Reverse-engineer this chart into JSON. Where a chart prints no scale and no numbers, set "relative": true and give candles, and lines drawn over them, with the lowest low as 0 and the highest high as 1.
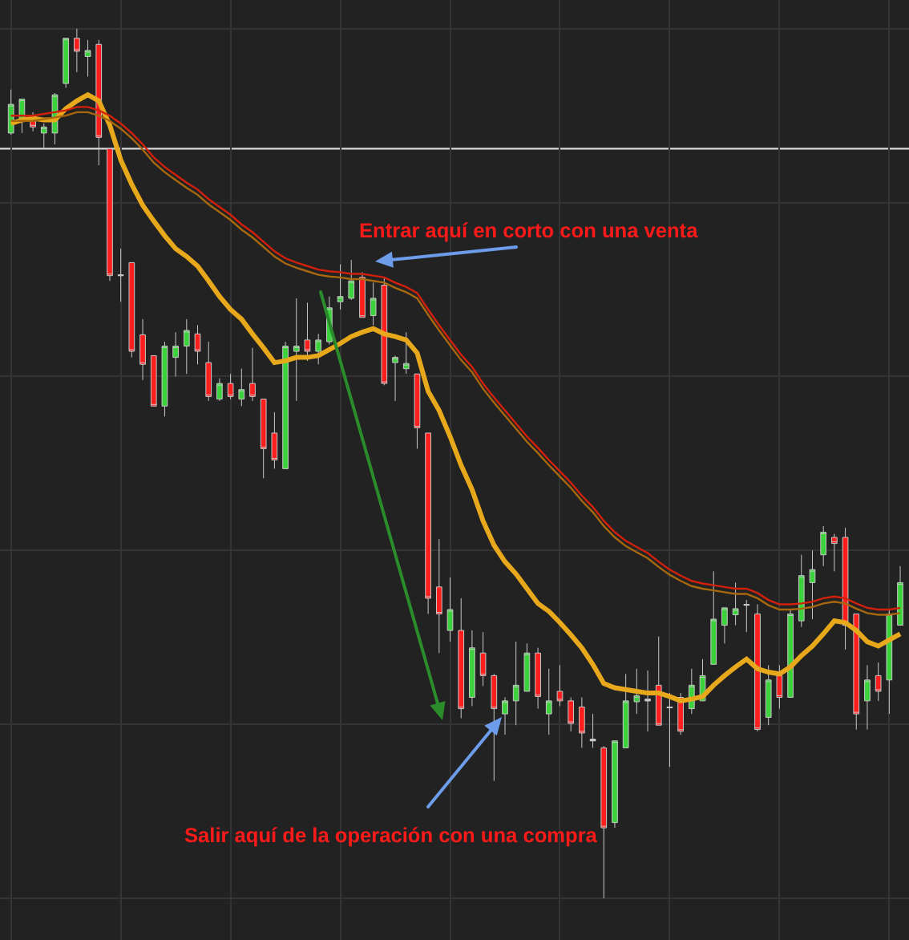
{
  "chart_data": {
    "type": "candlestick",
    "relative": true,
    "tick_labels": false,
    "grid": true,
    "categories": [
      null,
      null,
      null,
      null,
      null,
      null,
      null,
      null,
      null,
      null,
      null,
      null,
      null,
      null,
      null,
      null,
      null,
      null,
      null,
      null,
      null,
      null,
      null,
      null,
      null,
      null,
      null,
      null,
      null,
      null,
      null,
      null,
      null,
      null,
      null,
      null,
      null,
      null,
      null,
      null,
      null,
      null,
      null,
      null,
      null,
      null,
      null,
      null,
      null,
      null,
      null,
      null,
      null,
      null,
      null,
      null,
      null,
      null,
      null,
      null,
      null,
      null,
      null,
      null,
      null,
      null,
      null,
      null,
      null,
      null,
      null,
      null,
      null,
      null,
      null,
      null,
      null,
      null,
      null,
      null,
      null,
      null
    ],
    "ohlc": [
      [
        0.88,
        0.93,
        0.878,
        0.913
      ],
      [
        0.897,
        0.919,
        0.88,
        0.919
      ],
      [
        0.9,
        0.904,
        0.882,
        0.887
      ],
      [
        0.88,
        0.891,
        0.862,
        0.887
      ],
      [
        0.88,
        0.926,
        0.867,
        0.924
      ],
      [
        0.937,
        0.989,
        0.932,
        0.989
      ],
      [
        0.989,
        1,
        0.95,
        0.974
      ],
      [
        0.968,
        0.987,
        0.945,
        0.975
      ],
      [
        0.982,
        0.987,
        0.843,
        0.875
      ],
      [
        0.862,
        0.862,
        0.71,
        0.716
      ],
      [
        0.717,
        0.747,
        0.686,
        0.716
      ],
      [
        0.731,
        0.731,
        0.622,
        0.629
      ],
      [
        0.648,
        0.666,
        0.596,
        0.614
      ],
      [
        0.624,
        0.624,
        0.566,
        0.566
      ],
      [
        0.566,
        0.64,
        0.554,
        0.635
      ],
      [
        0.622,
        0.651,
        0.6,
        0.635
      ],
      [
        0.635,
        0.666,
        0.603,
        0.653
      ],
      [
        0.649,
        0.659,
        0.614,
        0.629
      ],
      [
        0.616,
        0.64,
        0.572,
        0.577
      ],
      [
        0.574,
        0.598,
        0.572,
        0.592
      ],
      [
        0.592,
        0.603,
        0.574,
        0.577
      ],
      [
        0.574,
        0.609,
        0.566,
        0.585
      ],
      [
        0.592,
        0.633,
        0.572,
        0.577
      ],
      [
        0.574,
        0.574,
        0.483,
        0.517
      ],
      [
        0.535,
        0.559,
        0.494,
        0.504
      ],
      [
        0.494,
        0.64,
        0.494,
        0.635
      ],
      [
        0.629,
        0.69,
        0.572,
        0.635
      ],
      [
        0.642,
        0.685,
        0.618,
        0.629
      ],
      [
        0.629,
        0.649,
        0.614,
        0.642
      ],
      [
        0.64,
        0.692,
        0.637,
        0.679
      ],
      [
        0.686,
        0.729,
        0.677,
        0.692
      ],
      [
        0.69,
        0.734,
        0.688,
        0.71
      ],
      [
        0.714,
        0.72,
        0.668,
        0.668
      ],
      [
        0.67,
        0.708,
        0.659,
        0.69
      ],
      [
        0.705,
        0.714,
        0.59,
        0.592
      ],
      [
        0.616,
        0.624,
        0.572,
        0.622
      ],
      [
        0.609,
        0.651,
        0.603,
        0.615
      ],
      [
        0.603,
        0.603,
        0.517,
        0.541
      ],
      [
        0.535,
        0.535,
        0.327,
        0.345
      ],
      [
        0.358,
        0.413,
        0.282,
        0.327
      ],
      [
        0.308,
        0.369,
        0.295,
        0.332
      ],
      [
        0.308,
        0.345,
        0.207,
        0.218
      ],
      [
        0.231,
        0.308,
        0.221,
        0.288
      ],
      [
        0.282,
        0.306,
        0.244,
        0.256
      ],
      [
        0.256,
        0.258,
        0.135,
        0.218
      ],
      [
        0.212,
        0.231,
        0.188,
        0.227
      ],
      [
        0.227,
        0.295,
        0.199,
        0.245
      ],
      [
        0.238,
        0.293,
        0.238,
        0.282
      ],
      [
        0.282,
        0.288,
        0.218,
        0.232
      ],
      [
        0.212,
        0.264,
        0.188,
        0.227
      ],
      [
        0.238,
        0.268,
        0.221,
        0.227
      ],
      [
        0.227,
        0.231,
        0.192,
        0.201
      ],
      [
        0.22,
        0.231,
        0.173,
        0.19
      ],
      [
        0.183,
        0.212,
        0.173,
        0.181
      ],
      [
        0.173,
        0.175,
        0,
        0.081
      ],
      [
        0.087,
        0.181,
        0.081,
        0.181
      ],
      [
        0.173,
        0.258,
        0.173,
        0.227
      ],
      [
        0.226,
        0.264,
        0.212,
        0.233
      ],
      [
        0.229,
        0.262,
        0.192,
        0.227
      ],
      [
        0.245,
        0.301,
        0.199,
        0.199
      ],
      [
        0.22,
        0.236,
        0.151,
        0.219
      ],
      [
        0.231,
        0.236,
        0.188,
        0.192
      ],
      [
        0.218,
        0.264,
        0.212,
        0.245
      ],
      [
        0.227,
        0.275,
        0.227,
        0.256
      ],
      [
        0.269,
        0.376,
        0.269,
        0.321
      ],
      [
        0.314,
        0.334,
        0.293,
        0.334
      ],
      [
        0.326,
        0.363,
        0.314,
        0.333
      ],
      [
        0.338,
        0.343,
        0.306,
        0.337
      ],
      [
        0.327,
        0.338,
        0.192,
        0.194
      ],
      [
        0.208,
        0.268,
        0.199,
        0.251
      ],
      [
        0.256,
        0.268,
        0.218,
        0.231
      ],
      [
        0.231,
        0.332,
        0.231,
        0.327
      ],
      [
        0.319,
        0.395,
        0.312,
        0.371
      ],
      [
        0.363,
        0.4,
        0.321,
        0.378
      ],
      [
        0.395,
        0.428,
        0.382,
        0.421
      ],
      [
        0.415,
        0.419,
        0.376,
        0.408
      ],
      [
        0.415,
        0.426,
        0.286,
        0.314
      ],
      [
        0.327,
        0.327,
        0.194,
        0.212
      ],
      [
        0.227,
        0.268,
        0.194,
        0.251
      ],
      [
        0.256,
        0.271,
        0.227,
        0.238
      ],
      [
        0.251,
        0.332,
        0.212,
        0.327
      ],
      [
        0.314,
        0.382,
        0.314,
        0.363
      ]
    ],
    "colors": [
      "#3cd23c",
      "#3cd23c",
      "#ff1e1e",
      "#3cd23c",
      "#3cd23c",
      "#3cd23c",
      "#ff1e1e",
      "#3cd23c",
      "#ff1e1e",
      "#ff1e1e",
      "#cccccc",
      "#ff1e1e",
      "#ff1e1e",
      "#ff1e1e",
      "#3cd23c",
      "#3cd23c",
      "#3cd23c",
      "#ff1e1e",
      "#ff1e1e",
      "#3cd23c",
      "#ff1e1e",
      "#3cd23c",
      "#ff1e1e",
      "#ff1e1e",
      "#ff1e1e",
      "#3cd23c",
      "#3cd23c",
      "#ff1e1e",
      "#3cd23c",
      "#3cd23c",
      "#3cd23c",
      "#3cd23c",
      "#ff1e1e",
      "#3cd23c",
      "#ff1e1e",
      "#3cd23c",
      "#3cd23c",
      "#ff1e1e",
      "#ff1e1e",
      "#ff1e1e",
      "#3cd23c",
      "#ff1e1e",
      "#3cd23c",
      "#ff1e1e",
      "#ff1e1e",
      "#3cd23c",
      "#3cd23c",
      "#3cd23c",
      "#ff1e1e",
      "#3cd23c",
      "#ff1e1e",
      "#ff1e1e",
      "#ff1e1e",
      "#cccccc",
      "#ff1e1e",
      "#3cd23c",
      "#3cd23c",
      "#3cd23c",
      "#cccccc",
      "#ff1e1e",
      "#cccccc",
      "#ff1e1e",
      "#3cd23c",
      "#3cd23c",
      "#3cd23c",
      "#3cd23c",
      "#3cd23c",
      "#cccccc",
      "#ff1e1e",
      "#3cd23c",
      "#ff1e1e",
      "#3cd23c",
      "#3cd23c",
      "#3cd23c",
      "#3cd23c",
      "#ff1e1e",
      "#ff1e1e",
      "#ff1e1e",
      "#3cd23c",
      "#ff1e1e",
      "#3cd23c",
      "#3cd23c"
    ],
    "series": [
      {
        "type": "line",
        "color": "#e8a81c",
        "values": [
          0.891,
          0.895,
          0.897,
          0.895,
          0.895,
          0.908,
          0.917,
          0.924,
          0.917,
          0.889,
          0.849,
          0.821,
          0.797,
          0.779,
          0.762,
          0.747,
          0.738,
          0.727,
          0.71,
          0.692,
          0.677,
          0.666,
          0.649,
          0.633,
          0.616,
          0.618,
          0.622,
          0.622,
          0.624,
          0.631,
          0.638,
          0.646,
          0.651,
          0.655,
          0.649,
          0.646,
          0.642,
          0.627,
          0.583,
          0.561,
          0.531,
          0.498,
          0.47,
          0.434,
          0.406,
          0.387,
          0.373,
          0.356,
          0.339,
          0.33,
          0.317,
          0.303,
          0.288,
          0.269,
          0.247,
          0.242,
          0.24,
          0.238,
          0.236,
          0.236,
          0.232,
          0.227,
          0.229,
          0.232,
          0.245,
          0.256,
          0.266,
          0.275,
          0.264,
          0.26,
          0.258,
          0.266,
          0.279,
          0.29,
          0.304,
          0.319,
          0.317,
          0.308,
          0.295,
          0.29,
          0.297,
          0.304
        ]
      },
      {
        "type": "line",
        "color": "#d2200c",
        "values": [
          0.9,
          0.9,
          0.9,
          0.902,
          0.904,
          0.906,
          0.91,
          0.91,
          0.906,
          0.9,
          0.891,
          0.88,
          0.867,
          0.852,
          0.841,
          0.832,
          0.823,
          0.815,
          0.804,
          0.795,
          0.786,
          0.775,
          0.766,
          0.755,
          0.744,
          0.736,
          0.731,
          0.727,
          0.723,
          0.721,
          0.72,
          0.718,
          0.718,
          0.716,
          0.714,
          0.708,
          0.703,
          0.696,
          0.677,
          0.659,
          0.642,
          0.625,
          0.611,
          0.592,
          0.576,
          0.561,
          0.546,
          0.531,
          0.518,
          0.504,
          0.491,
          0.478,
          0.463,
          0.45,
          0.434,
          0.421,
          0.411,
          0.404,
          0.397,
          0.387,
          0.378,
          0.371,
          0.365,
          0.362,
          0.36,
          0.358,
          0.356,
          0.356,
          0.351,
          0.343,
          0.338,
          0.338,
          0.339,
          0.341,
          0.345,
          0.347,
          0.345,
          0.339,
          0.334,
          0.332,
          0.332,
          0.334
        ]
      },
      {
        "type": "line",
        "color": "#a8680e",
        "values": [
          0.894,
          0.894,
          0.894,
          0.896,
          0.898,
          0.9,
          0.904,
          0.904,
          0.9,
          0.894,
          0.885,
          0.874,
          0.861,
          0.846,
          0.835,
          0.826,
          0.817,
          0.809,
          0.798,
          0.789,
          0.78,
          0.769,
          0.76,
          0.749,
          0.738,
          0.73,
          0.725,
          0.721,
          0.717,
          0.715,
          0.714,
          0.712,
          0.712,
          0.71,
          0.708,
          0.702,
          0.697,
          0.69,
          0.671,
          0.653,
          0.636,
          0.619,
          0.605,
          0.586,
          0.57,
          0.555,
          0.54,
          0.525,
          0.512,
          0.498,
          0.485,
          0.472,
          0.457,
          0.444,
          0.428,
          0.415,
          0.405,
          0.398,
          0.391,
          0.381,
          0.372,
          0.365,
          0.359,
          0.356,
          0.354,
          0.352,
          0.35,
          0.35,
          0.345,
          0.337,
          0.332,
          0.332,
          0.333,
          0.335,
          0.339,
          0.341,
          0.339,
          0.333,
          0.328,
          0.326,
          0.326,
          0.328
        ]
      }
    ],
    "ref_lines": [
      {
        "axis": "y",
        "value": 0.862,
        "color": "#d9d9d9"
      }
    ],
    "annotations": [
      "Entrar aquí en corto con una venta",
      "Salir aquí de la operación con una compra"
    ]
  }
}
